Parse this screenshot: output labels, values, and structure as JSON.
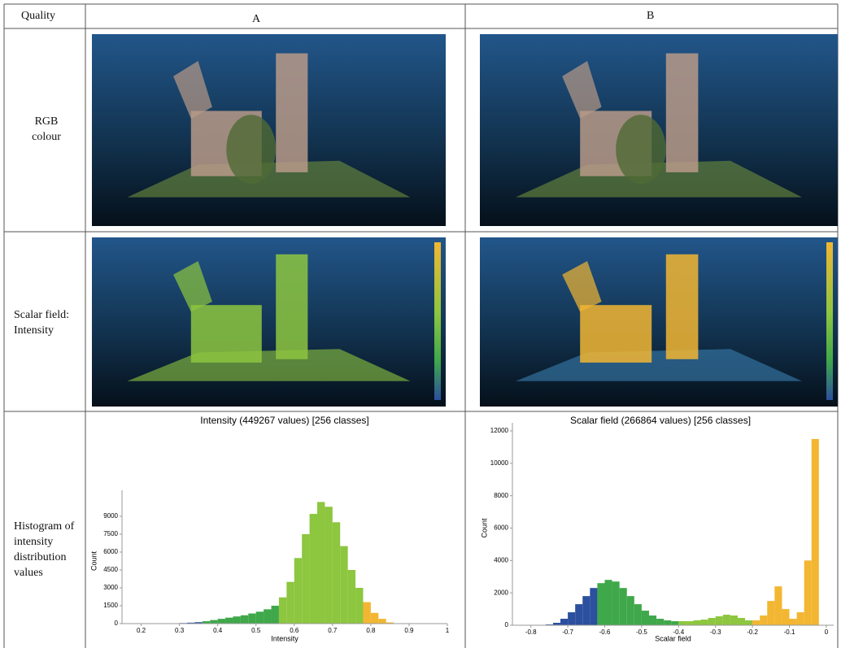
{
  "table": {
    "header": [
      "Quality",
      "A",
      "B"
    ],
    "rows": [
      "RGB colour",
      "Scalar field: Intensity",
      "Histogram of intensity distribution values"
    ]
  },
  "charts": [
    {
      "type": "histogram",
      "title": "Intensity (449267 values)  [256 classes]",
      "x_label": "Intensity",
      "y_label": "Count",
      "bins": [
        0.2,
        0.22,
        0.24,
        0.26,
        0.28,
        0.3,
        0.32,
        0.34,
        0.36,
        0.38,
        0.4,
        0.42,
        0.44,
        0.46,
        0.48,
        0.5,
        0.52,
        0.54,
        0.56,
        0.58,
        0.6,
        0.62,
        0.64,
        0.66,
        0.68,
        0.7,
        0.72,
        0.74,
        0.76,
        0.78,
        0.8,
        0.82,
        0.84,
        0.86
      ],
      "counts": [
        0,
        5,
        10,
        20,
        30,
        50,
        80,
        120,
        200,
        300,
        400,
        500,
        600,
        700,
        850,
        1000,
        1200,
        1500,
        2200,
        3500,
        5500,
        7500,
        9200,
        10200,
        9800,
        8500,
        6500,
        4500,
        3000,
        1800,
        900,
        400,
        100
      ],
      "colors": [
        "#2c4f9e",
        "#2c4f9e",
        "#2c4f9e",
        "#2c4f9e",
        "#2c4f9e",
        "#2c4f9e",
        "#2c4f9e",
        "#2c4f9e",
        "#3fa84a",
        "#3fa84a",
        "#3fa84a",
        "#3fa84a",
        "#3fa84a",
        "#3fa84a",
        "#3fa84a",
        "#3fa84a",
        "#3fa84a",
        "#3fa84a",
        "#8dc63f",
        "#8dc63f",
        "#8dc63f",
        "#8dc63f",
        "#8dc63f",
        "#8dc63f",
        "#8dc63f",
        "#8dc63f",
        "#8dc63f",
        "#8dc63f",
        "#8dc63f",
        "#f2b632",
        "#f2b632",
        "#f2b632",
        "#f2b632"
      ],
      "xlim": [
        0.15,
        1.0
      ],
      "xticks": [
        0.2,
        0.3,
        0.4,
        0.5,
        0.6,
        0.7,
        0.8,
        0.9,
        1
      ],
      "ylim": [
        0,
        10500
      ],
      "yticks": [
        0,
        1500,
        3000,
        4500,
        6000,
        7500,
        9000
      ]
    },
    {
      "type": "histogram",
      "title": "Scalar field (266864 values)  [256 classes]",
      "x_label": "Scalar field",
      "y_label": "Count",
      "bins": [
        -0.76,
        -0.74,
        -0.72,
        -0.7,
        -0.68,
        -0.66,
        -0.64,
        -0.62,
        -0.6,
        -0.58,
        -0.56,
        -0.54,
        -0.52,
        -0.5,
        -0.48,
        -0.46,
        -0.44,
        -0.42,
        -0.4,
        -0.38,
        -0.36,
        -0.34,
        -0.32,
        -0.3,
        -0.28,
        -0.26,
        -0.24,
        -0.22,
        -0.2,
        -0.18,
        -0.16,
        -0.14,
        -0.12,
        -0.1,
        -0.08,
        -0.06,
        -0.04,
        -0.02
      ],
      "counts": [
        50,
        150,
        400,
        800,
        1300,
        1800,
        2300,
        2600,
        2800,
        2700,
        2300,
        1800,
        1300,
        900,
        600,
        400,
        300,
        250,
        250,
        250,
        300,
        350,
        450,
        550,
        650,
        600,
        450,
        300,
        300,
        600,
        1500,
        2400,
        1000,
        400,
        800,
        4000,
        11500
      ],
      "colors": [
        "#2c4f9e",
        "#2c4f9e",
        "#2c4f9e",
        "#2c4f9e",
        "#2c4f9e",
        "#2c4f9e",
        "#2c4f9e",
        "#3fa84a",
        "#3fa84a",
        "#3fa84a",
        "#3fa84a",
        "#3fa84a",
        "#3fa84a",
        "#3fa84a",
        "#3fa84a",
        "#3fa84a",
        "#3fa84a",
        "#3fa84a",
        "#8dc63f",
        "#8dc63f",
        "#8dc63f",
        "#8dc63f",
        "#8dc63f",
        "#8dc63f",
        "#8dc63f",
        "#8dc63f",
        "#8dc63f",
        "#8dc63f",
        "#f2b632",
        "#f2b632",
        "#f2b632",
        "#f2b632",
        "#f2b632",
        "#f2b632",
        "#f2b632",
        "#f2b632",
        "#f2b632"
      ],
      "xlim": [
        -0.85,
        0.02
      ],
      "xticks": [
        -0.8,
        -0.7,
        -0.6,
        -0.5,
        -0.4,
        -0.3,
        -0.2,
        -0.1,
        0
      ],
      "ylim": [
        0,
        12000
      ],
      "yticks": [
        0,
        2000,
        4000,
        6000,
        8000,
        10000,
        12000
      ]
    }
  ]
}
